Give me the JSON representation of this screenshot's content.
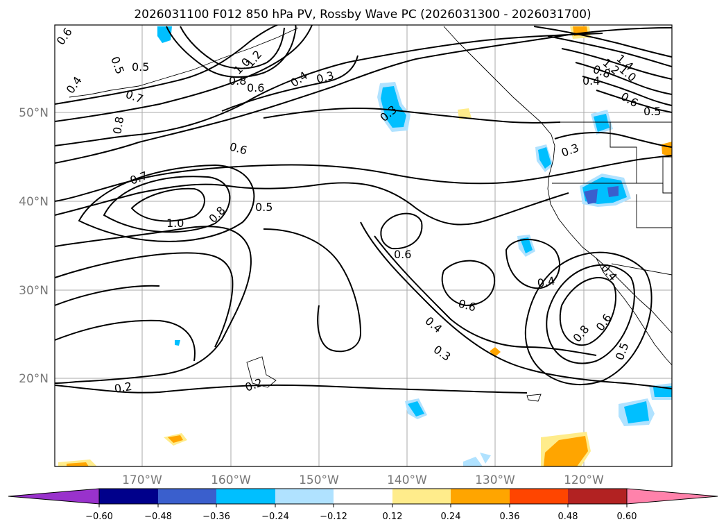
{
  "title": "2026031100 F012 850 hPa PV, Rossby Wave PC (2026031300 - 2026031700)",
  "lat_labels": [
    "50°N",
    "40°N",
    "30°N",
    "20°N"
  ],
  "lon_labels": [
    "170°W",
    "160°W",
    "150°W",
    "140°W",
    "130°W",
    "120°W"
  ],
  "contour_labels": [
    "0.6",
    "0.5",
    "0.5",
    "0.4",
    "1.2",
    "1.0",
    "0.8",
    "0.6",
    "0.4",
    "0.3",
    "0.7",
    "0.8",
    "0.3",
    "1.4",
    "1.2",
    "1.0",
    "0.8",
    "0.4",
    "0.6",
    "0.5",
    "0.3",
    "0.6",
    "0.7",
    "1.0",
    "0.8",
    "0.5",
    "0.6",
    "0.6",
    "0.4",
    "0.4",
    "0.3",
    "0.4",
    "0.8",
    "0.6",
    "0.5",
    "0.2",
    "0.2"
  ],
  "colorbar": {
    "colors": [
      "#9932CC",
      "#00008B",
      "#3A5FCD",
      "#00BFFF",
      "#B0E2FF",
      "#FFFFFF",
      "#FFEC8B",
      "#FFA500",
      "#FF4500",
      "#B22222",
      "#FF82AB"
    ],
    "tick_labels": [
      "−0.60",
      "−0.48",
      "−0.36",
      "−0.24",
      "−0.12",
      "0.12",
      "0.24",
      "0.36",
      "0.48",
      "0.60"
    ]
  }
}
